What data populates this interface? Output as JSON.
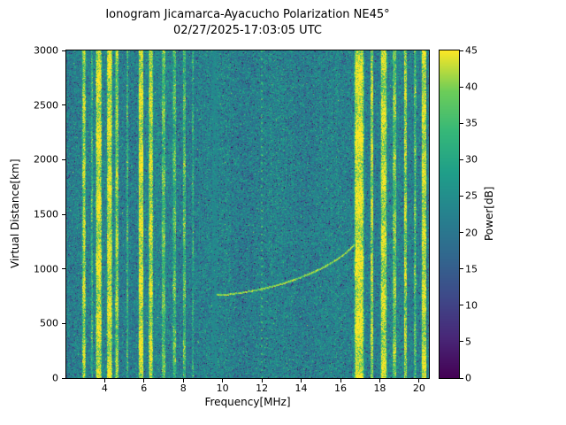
{
  "figure": {
    "title": "Ionogram Jicamarca-Ayacucho Polarization NE45°",
    "subtitle": "02/27/2025-17:03:05 UTC"
  },
  "chart_data": {
    "type": "heatmap",
    "title": "Ionogram Jicamarca-Ayacucho Polarization NE45°",
    "subtitle": "02/27/2025-17:03:05 UTC",
    "xlabel": "Frequency[MHz]",
    "ylabel": "Virtual Distance[km]",
    "colorbar_label": "Power[dB]",
    "colormap": "viridis",
    "xlim": [
      2.05,
      20.5
    ],
    "ylim": [
      0,
      3000
    ],
    "clim": [
      0,
      45
    ],
    "xticks": [
      4,
      6,
      8,
      10,
      12,
      14,
      16,
      18,
      20
    ],
    "yticks": [
      0,
      500,
      1000,
      1500,
      2000,
      2500,
      3000
    ],
    "cticks": [
      0,
      5,
      10,
      15,
      20,
      25,
      30,
      35,
      40,
      45
    ],
    "background_noise_db": {
      "mean": 22.5,
      "std": 4.5
    },
    "rfi_stripes": [
      {
        "freq": 2.95,
        "width": 0.18,
        "power_db": 42
      },
      {
        "freq": 3.35,
        "width": 0.1,
        "power_db": 32
      },
      {
        "freq": 3.7,
        "width": 0.34,
        "power_db": 44
      },
      {
        "freq": 4.25,
        "width": 0.3,
        "power_db": 44
      },
      {
        "freq": 4.62,
        "width": 0.18,
        "power_db": 40
      },
      {
        "freq": 5.15,
        "width": 0.12,
        "power_db": 32
      },
      {
        "freq": 5.85,
        "width": 0.28,
        "power_db": 44
      },
      {
        "freq": 6.35,
        "width": 0.24,
        "power_db": 43
      },
      {
        "freq": 7.0,
        "width": 0.2,
        "power_db": 36
      },
      {
        "freq": 7.55,
        "width": 0.18,
        "power_db": 35
      },
      {
        "freq": 8.05,
        "width": 0.16,
        "power_db": 35
      },
      {
        "freq": 8.5,
        "width": 0.1,
        "power_db": 30
      },
      {
        "freq": 16.95,
        "width": 0.55,
        "power_db": 45
      },
      {
        "freq": 17.6,
        "width": 0.16,
        "power_db": 41
      },
      {
        "freq": 18.2,
        "width": 0.34,
        "power_db": 43
      },
      {
        "freq": 18.75,
        "width": 0.2,
        "power_db": 38
      },
      {
        "freq": 19.3,
        "width": 0.16,
        "power_db": 41
      },
      {
        "freq": 19.8,
        "width": 0.12,
        "power_db": 36
      },
      {
        "freq": 20.25,
        "width": 0.28,
        "power_db": 43
      }
    ],
    "smooth_bands": [
      {
        "freq": 9.6,
        "width": 0.28,
        "power_db": 24,
        "std": 1.5
      }
    ],
    "dotted_line": {
      "freq": 12.0,
      "power_db": 35
    },
    "echo_trace": {
      "power_db": 40,
      "points": [
        [
          9.7,
          755
        ],
        [
          10.3,
          762
        ],
        [
          11.0,
          778
        ],
        [
          11.7,
          800
        ],
        [
          12.4,
          828
        ],
        [
          13.1,
          862
        ],
        [
          13.8,
          905
        ],
        [
          14.5,
          955
        ],
        [
          15.2,
          1015
        ],
        [
          15.9,
          1090
        ],
        [
          16.4,
          1160
        ],
        [
          16.7,
          1215
        ]
      ]
    }
  }
}
